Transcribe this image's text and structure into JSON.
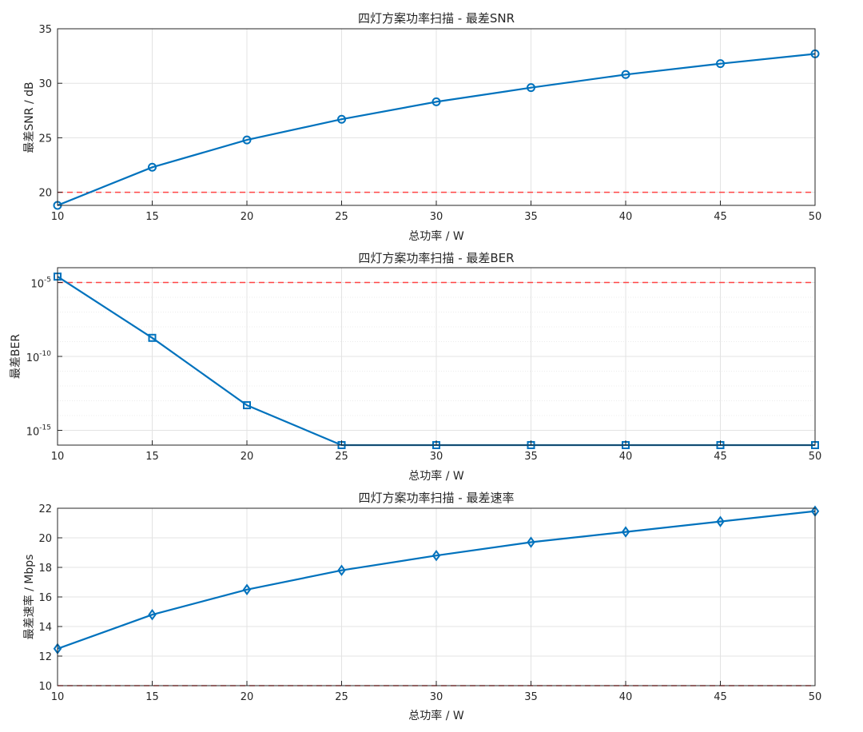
{
  "chart_data": [
    {
      "type": "line",
      "title": "四灯方案功率扫描 - 最差SNR",
      "xlabel": "总功率 / W",
      "ylabel": "最差SNR / dB",
      "x": [
        10,
        15,
        20,
        25,
        30,
        35,
        40,
        45,
        50
      ],
      "x_ticks": [
        "10",
        "15",
        "20",
        "25",
        "30",
        "35",
        "40",
        "45",
        "50"
      ],
      "xlim": [
        10,
        50
      ],
      "ylim": [
        18.8,
        35
      ],
      "y_scale": "linear",
      "y_ticks": [
        "20",
        "25",
        "30",
        "35"
      ],
      "y_tick_values": [
        20,
        25,
        30,
        35
      ],
      "grid": true,
      "series": [
        {
          "values": [
            18.8,
            22.3,
            24.8,
            26.7,
            28.3,
            29.6,
            30.8,
            31.8,
            32.7
          ],
          "marker": "circle",
          "color": "#0072BD"
        }
      ],
      "threshold": {
        "value": 20,
        "style": "dashed",
        "color": "#FF4545"
      }
    },
    {
      "type": "line",
      "title": "四灯方案功率扫描 - 最差BER",
      "xlabel": "总功率 / W",
      "ylabel": "最差BER",
      "x": [
        10,
        15,
        20,
        25,
        30,
        35,
        40,
        45,
        50
      ],
      "x_ticks": [
        "10",
        "15",
        "20",
        "25",
        "30",
        "35",
        "40",
        "45",
        "50"
      ],
      "xlim": [
        10,
        50
      ],
      "ylim": [
        1e-16,
        0.0001
      ],
      "y_scale": "log",
      "y_tick_bases": [
        "10",
        "10",
        "10"
      ],
      "y_tick_exponents": [
        "-5",
        "-10",
        "-15"
      ],
      "y_tick_values": [
        1e-05,
        1e-10,
        1e-15
      ],
      "grid": true,
      "series": [
        {
          "values": [
            2.5e-05,
            1.8e-09,
            5e-14,
            1e-16,
            1e-16,
            1e-16,
            1e-16,
            1e-16,
            1e-16
          ],
          "marker": "square",
          "color": "#0072BD"
        }
      ],
      "threshold": {
        "value": 1e-05,
        "style": "dashed",
        "color": "#FF4545"
      }
    },
    {
      "type": "line",
      "title": "四灯方案功率扫描 - 最差速率",
      "xlabel": "总功率 / W",
      "ylabel": "最差速率 / Mbps",
      "x": [
        10,
        15,
        20,
        25,
        30,
        35,
        40,
        45,
        50
      ],
      "x_ticks": [
        "10",
        "15",
        "20",
        "25",
        "30",
        "35",
        "40",
        "45",
        "50"
      ],
      "xlim": [
        10,
        50
      ],
      "ylim": [
        10,
        22
      ],
      "y_scale": "linear",
      "y_ticks": [
        "10",
        "12",
        "14",
        "16",
        "18",
        "20",
        "22"
      ],
      "y_tick_values": [
        10,
        12,
        14,
        16,
        18,
        20,
        22
      ],
      "grid": true,
      "series": [
        {
          "values": [
            12.5,
            14.8,
            16.5,
            17.8,
            18.8,
            19.7,
            20.4,
            21.1,
            21.8
          ],
          "marker": "diamond",
          "color": "#0072BD"
        }
      ],
      "threshold": {
        "value": 10,
        "style": "dashed",
        "color": "#FF4545"
      }
    }
  ]
}
